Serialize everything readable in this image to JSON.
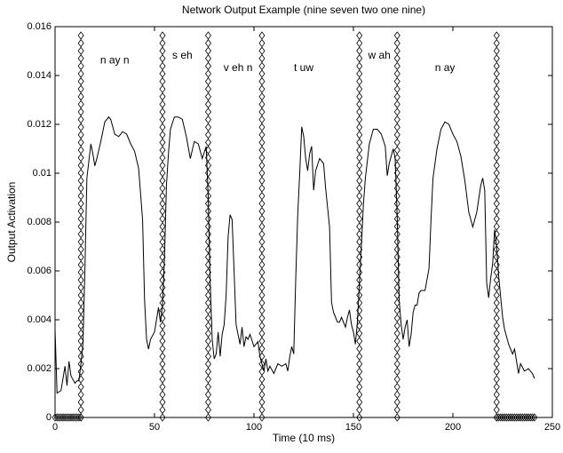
{
  "chart_data": {
    "type": "line",
    "title": "Network Output Example (nine seven two one nine)",
    "x_label": "Time (10 ms)",
    "y_label": "Output Activation",
    "xlim": [
      0,
      250
    ],
    "xticks": [
      0,
      50,
      100,
      150,
      200,
      250
    ],
    "ylim": [
      0,
      0.016
    ],
    "yticks": [
      0,
      0.002,
      0.004,
      0.006,
      0.008,
      0.01,
      0.012,
      0.014,
      0.016
    ],
    "grid": false,
    "series": [
      {
        "color": "#000000",
        "x": [
          0,
          1,
          3,
          4,
          5,
          6,
          7,
          8,
          10,
          11,
          12,
          13,
          14,
          15,
          16,
          17,
          18,
          19,
          20,
          21,
          23,
          25,
          27,
          28,
          30,
          32,
          34,
          36,
          38,
          40,
          42,
          44,
          45,
          46,
          47,
          48,
          50,
          52,
          53,
          54,
          55,
          56,
          57,
          58,
          60,
          62,
          64,
          66,
          68,
          70,
          72,
          74,
          76,
          77,
          78,
          79,
          80,
          81,
          82,
          83,
          84,
          85,
          86,
          87,
          88,
          89,
          90,
          91,
          92,
          93,
          94,
          95,
          96,
          97,
          98,
          100,
          102,
          103,
          104,
          105,
          106,
          107,
          108,
          110,
          112,
          114,
          116,
          117,
          118,
          119,
          120,
          121,
          122,
          123,
          124,
          125,
          126,
          127,
          128,
          129,
          130,
          131,
          133,
          135,
          136,
          138,
          139,
          140,
          141,
          142,
          143,
          144,
          146,
          147,
          148,
          149,
          150,
          151,
          152,
          153,
          154,
          155,
          156,
          157,
          158,
          160,
          162,
          164,
          166,
          167,
          168,
          170,
          171,
          172,
          173,
          174,
          175,
          176,
          177,
          178,
          179,
          180,
          181,
          182,
          183,
          184,
          186,
          188,
          189,
          190,
          192,
          194,
          196,
          198,
          200,
          202,
          204,
          206,
          208,
          210,
          212,
          214,
          215,
          216,
          217,
          218,
          219,
          220,
          221,
          222,
          223,
          225,
          226,
          228,
          230,
          231,
          232,
          233,
          234,
          236,
          238,
          240,
          241
        ],
        "values": [
          0.0036,
          0.001,
          0.0011,
          0.0016,
          0.0021,
          0.0013,
          0.0023,
          0.0017,
          0.0014,
          0.0015,
          0.0015,
          0.0022,
          0.003,
          0.006,
          0.0098,
          0.0105,
          0.0112,
          0.0108,
          0.0103,
          0.0106,
          0.0113,
          0.0121,
          0.0123,
          0.0122,
          0.0116,
          0.0115,
          0.0117,
          0.0116,
          0.0112,
          0.0109,
          0.0102,
          0.0081,
          0.0048,
          0.0032,
          0.0028,
          0.0032,
          0.0035,
          0.0045,
          0.0039,
          0.0046,
          0.0065,
          0.0095,
          0.0108,
          0.0118,
          0.0123,
          0.0123,
          0.0122,
          0.0115,
          0.0106,
          0.0113,
          0.0112,
          0.0106,
          0.0111,
          0.009,
          0.0055,
          0.0032,
          0.0024,
          0.0026,
          0.0035,
          0.0025,
          0.0034,
          0.0038,
          0.005,
          0.0074,
          0.0083,
          0.0081,
          0.006,
          0.0038,
          0.0034,
          0.003,
          0.0037,
          0.0029,
          0.0033,
          0.0032,
          0.0034,
          0.0029,
          0.0031,
          0.0025,
          0.0022,
          0.0019,
          0.0024,
          0.0019,
          0.0021,
          0.0018,
          0.0022,
          0.0021,
          0.0022,
          0.0019,
          0.0025,
          0.0029,
          0.0026,
          0.0057,
          0.0083,
          0.01,
          0.0119,
          0.0115,
          0.0106,
          0.0101,
          0.0108,
          0.0111,
          0.0093,
          0.0101,
          0.0106,
          0.0104,
          0.0094,
          0.0078,
          0.0047,
          0.0043,
          0.0041,
          0.0039,
          0.0039,
          0.0041,
          0.0037,
          0.0041,
          0.0044,
          0.0038,
          0.0035,
          0.003,
          0.0039,
          0.0055,
          0.007,
          0.0087,
          0.0098,
          0.0105,
          0.0112,
          0.0118,
          0.0118,
          0.0116,
          0.0111,
          0.0099,
          0.0104,
          0.011,
          0.0106,
          0.0082,
          0.0048,
          0.0038,
          0.0032,
          0.0037,
          0.004,
          0.0029,
          0.0034,
          0.0043,
          0.0046,
          0.0046,
          0.0051,
          0.0052,
          0.0052,
          0.0061,
          0.0081,
          0.0098,
          0.011,
          0.0118,
          0.0121,
          0.012,
          0.0116,
          0.0113,
          0.0107,
          0.0097,
          0.0084,
          0.0078,
          0.0084,
          0.0095,
          0.0098,
          0.0093,
          0.0055,
          0.0049,
          0.0057,
          0.0063,
          0.0077,
          0.007,
          0.0058,
          0.0041,
          0.0036,
          0.003,
          0.0026,
          0.0028,
          0.0023,
          0.0018,
          0.0022,
          0.0019,
          0.002,
          0.0018,
          0.0016
        ]
      }
    ],
    "boundaries": [
      13,
      54,
      77,
      104,
      153,
      172,
      222
    ],
    "silence": [
      [
        0,
        13
      ],
      [
        222,
        241
      ]
    ],
    "annotations": [
      {
        "text": "n ay n",
        "x": 30,
        "y": 0.0146
      },
      {
        "text": "s eh",
        "x": 64,
        "y": 0.0148
      },
      {
        "text": "v eh n",
        "x": 92,
        "y": 0.0143
      },
      {
        "text": "t uw",
        "x": 125,
        "y": 0.0143
      },
      {
        "text": "w ah",
        "x": 163,
        "y": 0.0148
      },
      {
        "text": "n ay",
        "x": 196,
        "y": 0.0143
      }
    ]
  }
}
